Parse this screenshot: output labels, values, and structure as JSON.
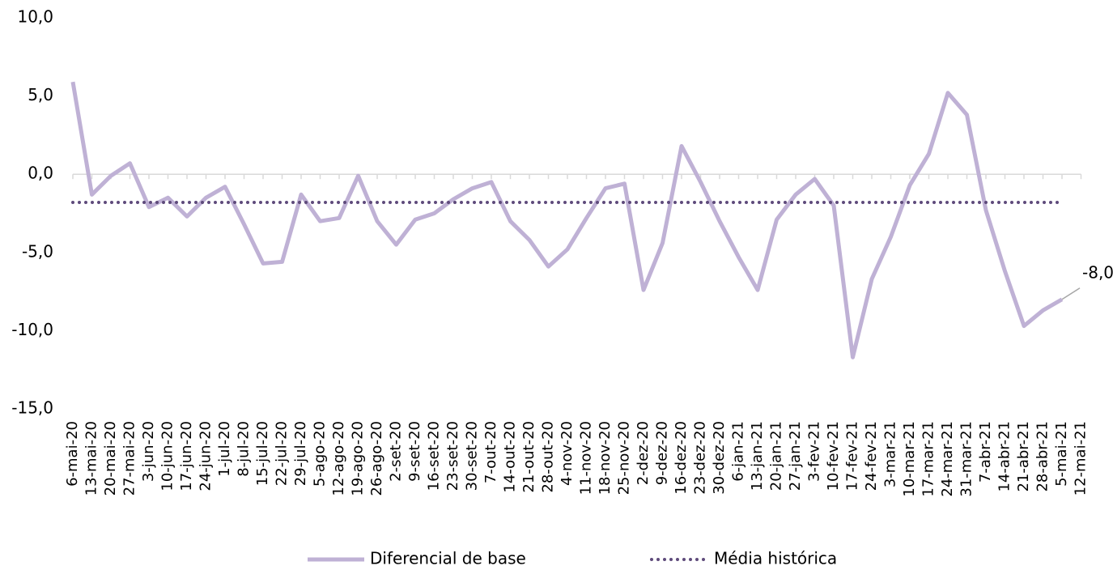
{
  "chart_data": {
    "type": "line",
    "categories": [
      "6-mai-20",
      "13-mai-20",
      "20-mai-20",
      "27-mai-20",
      "3-jun-20",
      "10-jun-20",
      "17-jun-20",
      "24-jun-20",
      "1-jul-20",
      "8-jul-20",
      "15-jul-20",
      "22-jul-20",
      "29-jul-20",
      "5-ago-20",
      "12-ago-20",
      "19-ago-20",
      "26-ago-20",
      "2-set-20",
      "9-set-20",
      "16-set-20",
      "23-set-20",
      "30-set-20",
      "7-out-20",
      "14-out-20",
      "21-out-20",
      "28-out-20",
      "4-nov-20",
      "11-nov-20",
      "18-nov-20",
      "25-nov-20",
      "2-dez-20",
      "9-dez-20",
      "16-dez-20",
      "23-dez-20",
      "30-dez-20",
      "6-jan-21",
      "13-jan-21",
      "20-jan-21",
      "27-jan-21",
      "3-fev-21",
      "10-fev-21",
      "17-fev-21",
      "24-fev-21",
      "3-mar-21",
      "10-mar-21",
      "17-mar-21",
      "24-mar-21",
      "31-mar-21",
      "7-abr-21",
      "14-abr-21",
      "21-abr-21",
      "28-abr-21",
      "5-mai-21",
      "12-mai-21"
    ],
    "series": [
      {
        "name": "Diferencial de base",
        "color": "#bfb1d5",
        "style": "solid",
        "values": [
          5.9,
          -1.3,
          -0.1,
          0.7,
          -2.1,
          -1.5,
          -2.7,
          -1.5,
          -0.8,
          -3.2,
          -5.7,
          -5.6,
          -1.3,
          -3.0,
          -2.8,
          -0.1,
          -3.0,
          -4.5,
          -2.9,
          -2.5,
          -1.6,
          -0.9,
          -0.5,
          -3.0,
          -4.2,
          -5.9,
          -4.8,
          -2.8,
          -0.9,
          -0.6,
          -7.4,
          -4.4,
          1.8,
          -0.5,
          -3.0,
          -5.3,
          -7.4,
          -2.9,
          -1.3,
          -0.3,
          -2.0,
          -11.7,
          -6.7,
          -4.0,
          -0.7,
          1.3,
          5.2,
          3.8,
          -2.3,
          -6.2,
          -9.7,
          -8.7,
          -8.0,
          null
        ],
        "value_labels": [
          null,
          null,
          null,
          null,
          null,
          null,
          null,
          null,
          null,
          null,
          null,
          null,
          null,
          null,
          null,
          null,
          null,
          null,
          null,
          null,
          null,
          null,
          null,
          null,
          null,
          null,
          null,
          null,
          null,
          null,
          null,
          null,
          null,
          null,
          null,
          null,
          null,
          null,
          null,
          null,
          null,
          null,
          null,
          null,
          null,
          null,
          null,
          null,
          null,
          null,
          null,
          null,
          "-8,0",
          null
        ]
      },
      {
        "name": "Média histórica",
        "color": "#5e4a7b",
        "style": "dotted",
        "values": [
          -1.8,
          -1.8,
          -1.8,
          -1.8,
          -1.8,
          -1.8,
          -1.8,
          -1.8,
          -1.8,
          -1.8,
          -1.8,
          -1.8,
          -1.8,
          -1.8,
          -1.8,
          -1.8,
          -1.8,
          -1.8,
          -1.8,
          -1.8,
          -1.8,
          -1.8,
          -1.8,
          -1.8,
          -1.8,
          -1.8,
          -1.8,
          -1.8,
          -1.8,
          -1.8,
          -1.8,
          -1.8,
          -1.8,
          -1.8,
          -1.8,
          -1.8,
          -1.8,
          -1.8,
          -1.8,
          -1.8,
          -1.8,
          -1.8,
          -1.8,
          -1.8,
          -1.8,
          -1.8,
          -1.8,
          -1.8,
          -1.8,
          -1.8,
          -1.8,
          -1.8,
          -1.8,
          null
        ]
      }
    ],
    "ylim": [
      -15,
      10
    ],
    "yticks": [
      {
        "value": -15,
        "label": "-15,0"
      },
      {
        "value": -10,
        "label": "-10,0"
      },
      {
        "value": -5,
        "label": "-5,0"
      },
      {
        "value": 0,
        "label": "0,0"
      },
      {
        "value": 5,
        "label": "5,0"
      },
      {
        "value": 10,
        "label": "10,0"
      }
    ],
    "grid": false,
    "legend": "bottom"
  }
}
